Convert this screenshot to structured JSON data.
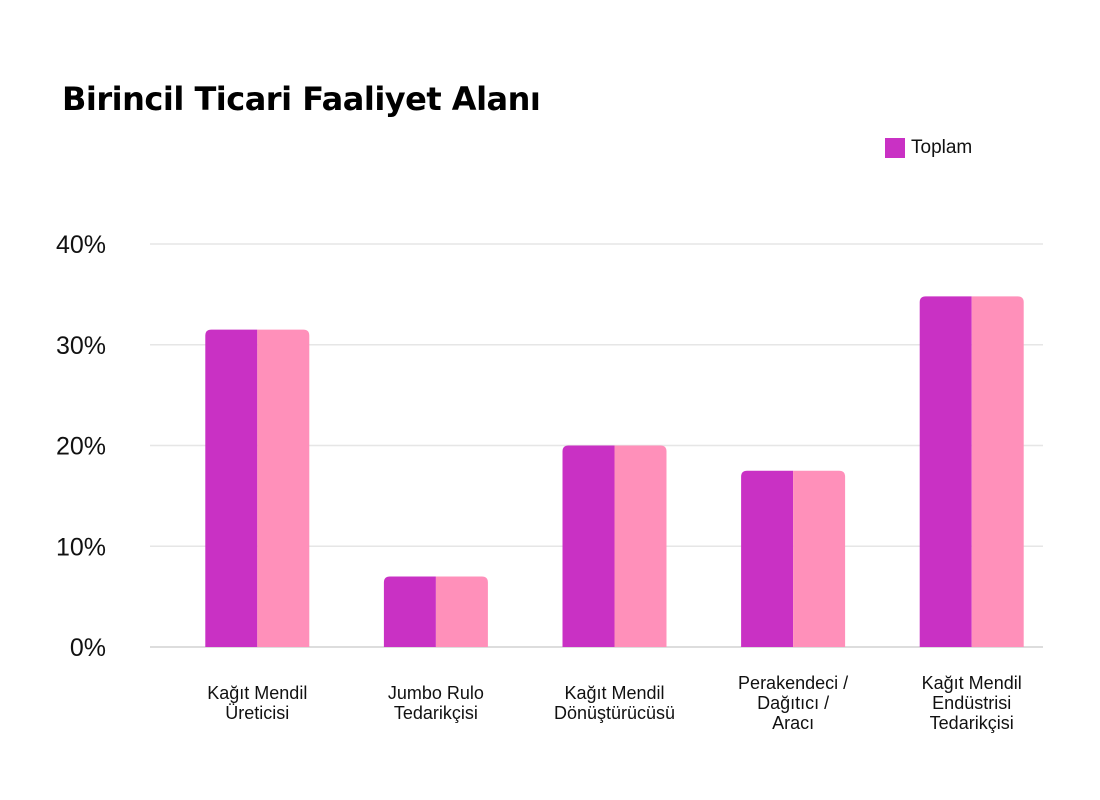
{
  "chart_data": {
    "type": "bar",
    "title": "Birincil Ticari Faaliyet Alanı",
    "categories": [
      [
        "Kağıt Mendil",
        "Üreticisi"
      ],
      [
        "Jumbo Rulo",
        "Tedarikçisi"
      ],
      [
        "Kağıt Mendil",
        "Dönüştürücüsü"
      ],
      [
        "Perakendeci /",
        "Dağıtıcı /",
        "Aracı"
      ],
      [
        "Kağıt Mendil",
        "Endüstrisi",
        "Tedarikçisi"
      ]
    ],
    "series": [
      {
        "name": "Toplam",
        "values": [
          31.5,
          7,
          20,
          17.5,
          34.8
        ]
      }
    ],
    "ylim": [
      0,
      40
    ],
    "yticks": [
      0,
      10,
      20,
      30,
      40
    ],
    "ytick_suffix": "%",
    "xlabel": "",
    "ylabel": "",
    "grid": true,
    "legend_position": "top-right",
    "colors": {
      "bar_primary": "#c931c4",
      "bar_secondary": "#ff90ba",
      "grid": "#e6e6e6",
      "baseline": "#dddddd"
    }
  }
}
